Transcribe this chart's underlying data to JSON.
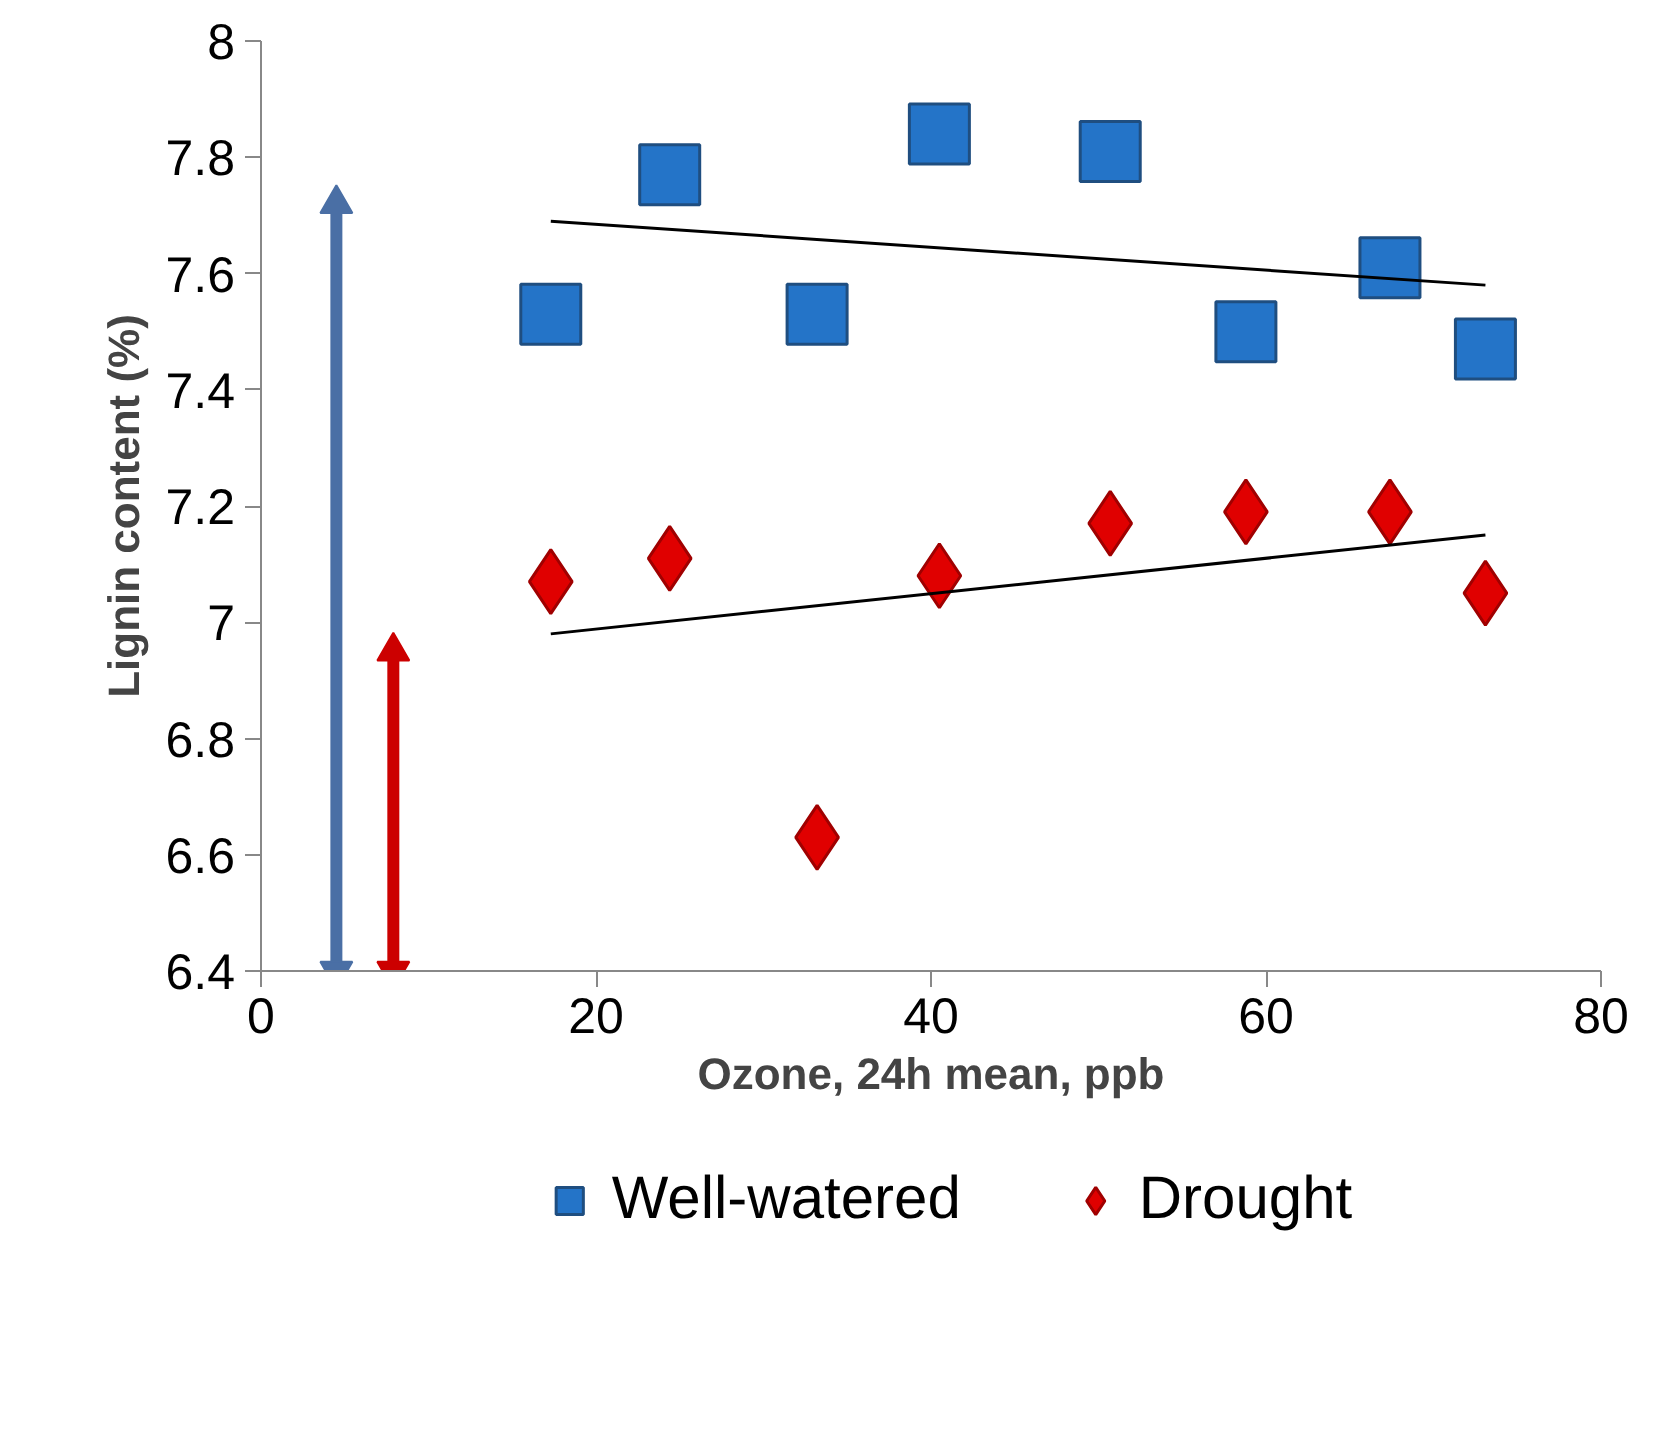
{
  "chart_data": {
    "type": "scatter",
    "xlabel": "Ozone, 24h mean, ppb",
    "ylabel": "Lignin content (%)",
    "xlim": [
      0,
      80
    ],
    "xticks": [
      0,
      20,
      40,
      60,
      80
    ],
    "ylim": [
      6.4,
      8
    ],
    "yticks": [
      6.4,
      6.6,
      6.8,
      7,
      7.2,
      7.4,
      7.6,
      7.8,
      8
    ],
    "grid": false,
    "legend": "bottom",
    "series": [
      {
        "name": "Well-watered",
        "color": "#2474c8",
        "marker": "square",
        "x": [
          17.3,
          24.4,
          33.2,
          40.5,
          50.7,
          58.8,
          67.4,
          73.1
        ],
        "values": [
          7.53,
          7.77,
          7.53,
          7.84,
          7.81,
          7.5,
          7.61,
          7.47
        ]
      },
      {
        "name": "Drought",
        "color": "#e00000",
        "marker": "diamond",
        "x": [
          17.3,
          24.4,
          33.2,
          40.5,
          50.7,
          58.8,
          67.4,
          73.1
        ],
        "values": [
          7.07,
          7.11,
          6.63,
          7.08,
          7.17,
          7.19,
          7.19,
          7.05
        ]
      },
      {
        "type": "line",
        "color": "#000000",
        "x": [
          17.3,
          73.1
        ],
        "values": [
          7.69,
          7.58
        ]
      },
      {
        "type": "line",
        "color": "#000000",
        "x": [
          17.3,
          73.1
        ],
        "values": [
          6.98,
          7.15
        ]
      },
      {
        "type": "line",
        "color": "#4a6fa5",
        "marker": "triangle",
        "x": [
          4.5,
          4.5
        ],
        "values": [
          6.4,
          7.72
        ]
      },
      {
        "type": "line",
        "color": "#cc0000",
        "marker": "triangle",
        "x": [
          7.9,
          7.9
        ],
        "values": [
          6.4,
          6.95
        ]
      }
    ]
  }
}
